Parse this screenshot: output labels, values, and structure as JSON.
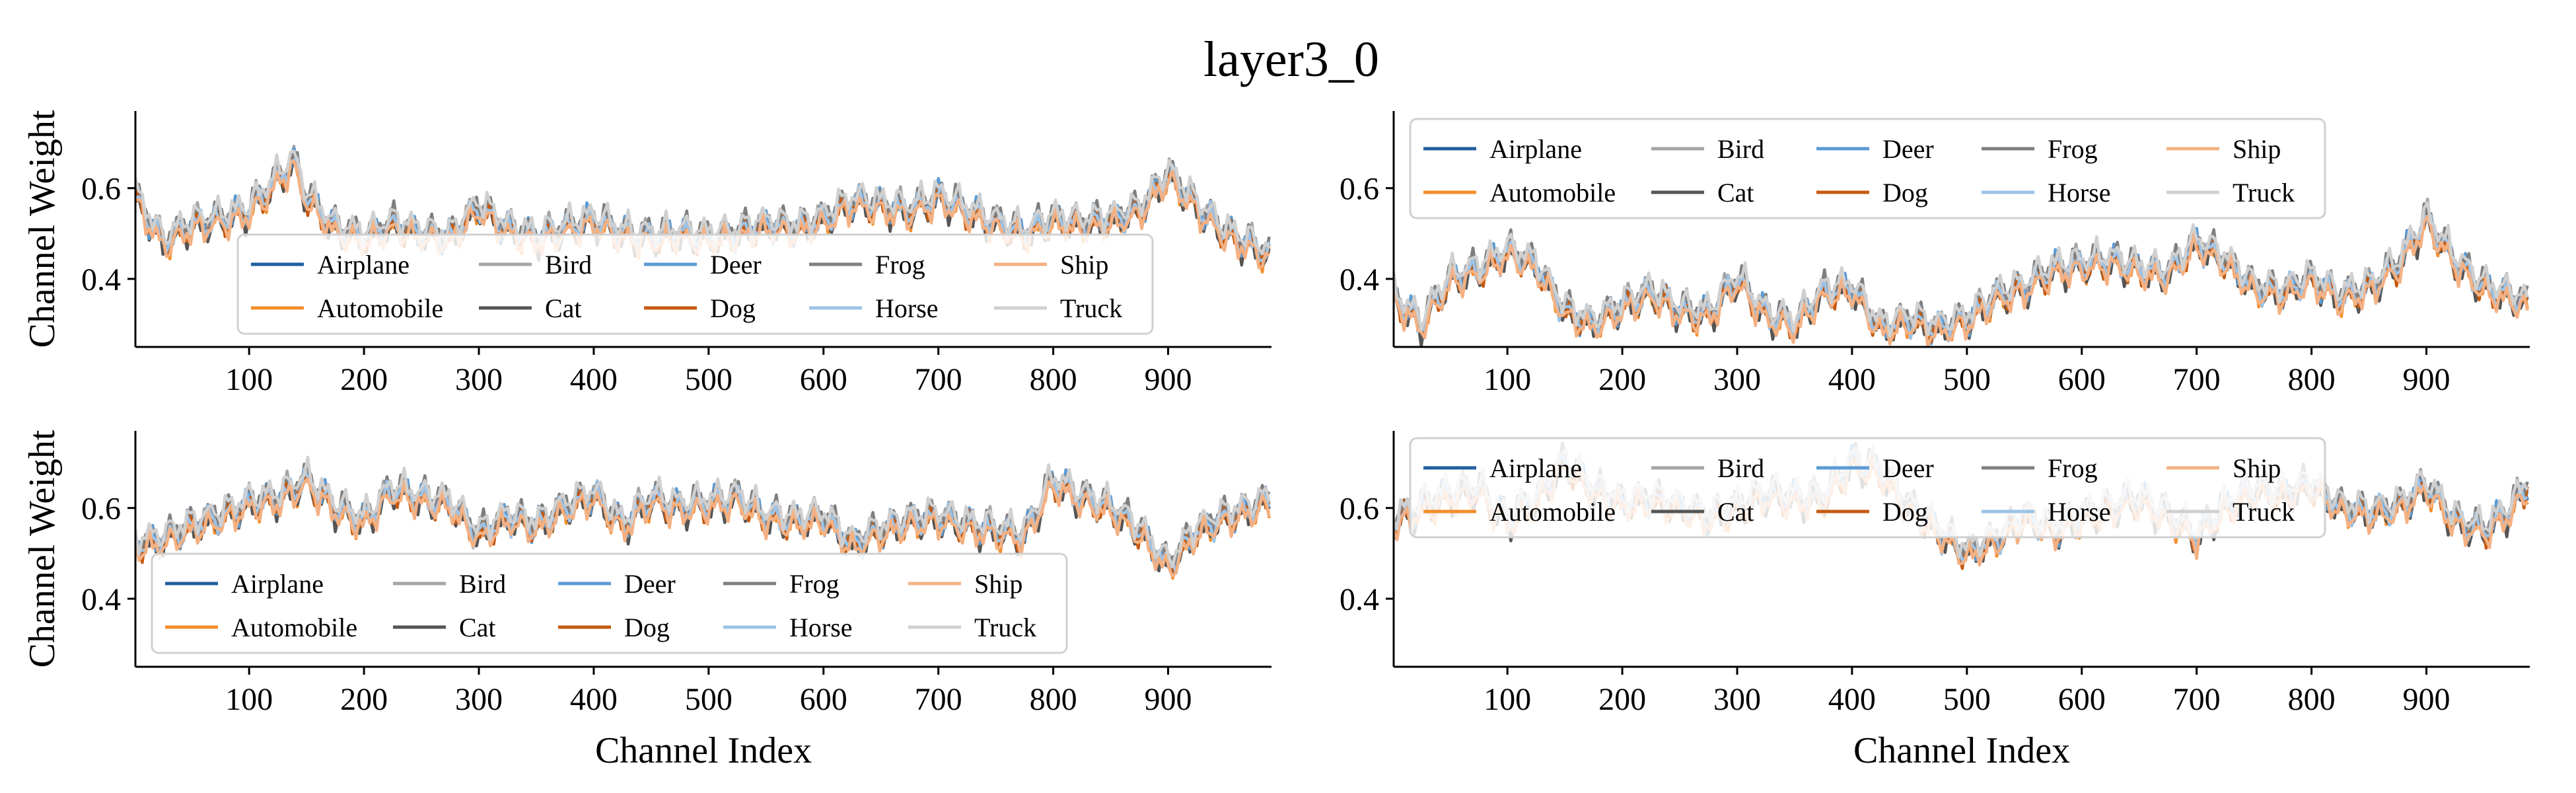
{
  "title": "layer3_0",
  "colors": {
    "Airplane": "#1f5f9e",
    "Automobile": "#f28e2b",
    "Bird": "#a5a5a5",
    "Cat": "#555555",
    "Deer": "#5b9bd5",
    "Dog": "#c55a11",
    "Frog": "#7f7f7f",
    "Horse": "#9dc3e6",
    "Ship": "#f4b183",
    "Truck": "#d0d0d0"
  },
  "chart_data": [
    {
      "type": "line",
      "xlabel": "",
      "ylabel": "Channel Weight",
      "xlim": [
        1,
        990
      ],
      "ylim": [
        0.25,
        0.77
      ],
      "xticks": [
        100,
        200,
        300,
        400,
        500,
        600,
        700,
        800,
        900
      ],
      "yticks": [
        0.4,
        0.6
      ],
      "legend": {
        "placement": "lower-center",
        "entries": [
          "Airplane",
          "Automobile",
          "Bird",
          "Cat",
          "Deer",
          "Dog",
          "Frog",
          "Horse",
          "Ship",
          "Truck"
        ]
      },
      "grid": false,
      "series_names": [
        "Airplane",
        "Automobile",
        "Bird",
        "Cat",
        "Deer",
        "Dog",
        "Frog",
        "Horse",
        "Ship",
        "Truck"
      ],
      "x": [
        1,
        25,
        50,
        75,
        100,
        125,
        138,
        150,
        175,
        200,
        225,
        250,
        275,
        300,
        325,
        350,
        375,
        400,
        425,
        450,
        475,
        500,
        525,
        550,
        575,
        600,
        625,
        650,
        675,
        700,
        725,
        750,
        775,
        800,
        825,
        850,
        875,
        900,
        925,
        950,
        975,
        990
      ],
      "base": [
        0.58,
        0.48,
        0.52,
        0.53,
        0.55,
        0.62,
        0.66,
        0.58,
        0.51,
        0.49,
        0.52,
        0.5,
        0.49,
        0.56,
        0.51,
        0.49,
        0.51,
        0.53,
        0.5,
        0.49,
        0.5,
        0.49,
        0.5,
        0.52,
        0.51,
        0.53,
        0.57,
        0.56,
        0.55,
        0.58,
        0.55,
        0.52,
        0.5,
        0.53,
        0.52,
        0.53,
        0.55,
        0.63,
        0.56,
        0.5,
        0.47,
        0.45
      ]
    },
    {
      "type": "line",
      "xlabel": "",
      "ylabel": "",
      "xlim": [
        1,
        990
      ],
      "ylim": [
        0.25,
        0.77
      ],
      "xticks": [
        100,
        200,
        300,
        400,
        500,
        600,
        700,
        800,
        900
      ],
      "yticks": [
        0.4,
        0.6
      ],
      "legend": {
        "placement": "upper-left",
        "entries": [
          "Airplane",
          "Automobile",
          "Bird",
          "Cat",
          "Deer",
          "Dog",
          "Frog",
          "Horse",
          "Ship",
          "Truck"
        ]
      },
      "grid": false,
      "series_names": [
        "Airplane",
        "Automobile",
        "Bird",
        "Cat",
        "Deer",
        "Dog",
        "Frog",
        "Horse",
        "Ship",
        "Truck"
      ],
      "x": [
        1,
        25,
        50,
        75,
        100,
        125,
        150,
        175,
        200,
        225,
        250,
        275,
        300,
        325,
        350,
        375,
        400,
        425,
        450,
        475,
        500,
        525,
        550,
        575,
        600,
        625,
        650,
        675,
        700,
        725,
        750,
        775,
        800,
        825,
        850,
        875,
        900,
        925,
        950,
        975,
        990
      ],
      "base": [
        0.36,
        0.3,
        0.4,
        0.42,
        0.46,
        0.43,
        0.33,
        0.3,
        0.34,
        0.37,
        0.33,
        0.32,
        0.4,
        0.32,
        0.3,
        0.37,
        0.38,
        0.29,
        0.31,
        0.29,
        0.31,
        0.36,
        0.38,
        0.42,
        0.43,
        0.44,
        0.42,
        0.41,
        0.48,
        0.44,
        0.38,
        0.37,
        0.4,
        0.36,
        0.38,
        0.43,
        0.53,
        0.44,
        0.38,
        0.36,
        0.34
      ]
    },
    {
      "type": "line",
      "xlabel": "Channel Index",
      "ylabel": "Channel Weight",
      "xlim": [
        1,
        990
      ],
      "ylim": [
        0.25,
        0.77
      ],
      "xticks": [
        100,
        200,
        300,
        400,
        500,
        600,
        700,
        800,
        900
      ],
      "yticks": [
        0.4,
        0.6
      ],
      "legend": {
        "placement": "lower-left",
        "entries": [
          "Airplane",
          "Automobile",
          "Bird",
          "Cat",
          "Deer",
          "Dog",
          "Frog",
          "Horse",
          "Ship",
          "Truck"
        ]
      },
      "grid": false,
      "series_names": [
        "Airplane",
        "Automobile",
        "Bird",
        "Cat",
        "Deer",
        "Dog",
        "Frog",
        "Horse",
        "Ship",
        "Truck"
      ],
      "x": [
        1,
        25,
        50,
        75,
        100,
        125,
        150,
        175,
        200,
        225,
        250,
        275,
        300,
        325,
        350,
        375,
        400,
        425,
        450,
        475,
        500,
        525,
        550,
        575,
        600,
        625,
        650,
        675,
        700,
        725,
        750,
        775,
        800,
        825,
        850,
        875,
        900,
        925,
        950,
        975,
        990
      ],
      "base": [
        0.52,
        0.53,
        0.56,
        0.58,
        0.61,
        0.62,
        0.66,
        0.6,
        0.57,
        0.64,
        0.62,
        0.61,
        0.54,
        0.58,
        0.56,
        0.6,
        0.63,
        0.56,
        0.62,
        0.6,
        0.61,
        0.62,
        0.58,
        0.57,
        0.58,
        0.52,
        0.55,
        0.57,
        0.58,
        0.56,
        0.55,
        0.54,
        0.66,
        0.62,
        0.6,
        0.55,
        0.47,
        0.55,
        0.58,
        0.6,
        0.62
      ]
    },
    {
      "type": "line",
      "xlabel": "Channel Index",
      "ylabel": "",
      "xlim": [
        1,
        990
      ],
      "ylim": [
        0.25,
        0.77
      ],
      "xticks": [
        100,
        200,
        300,
        400,
        500,
        600,
        700,
        800,
        900
      ],
      "yticks": [
        0.4,
        0.6
      ],
      "legend": {
        "placement": "upper-left",
        "entries": [
          "Airplane",
          "Automobile",
          "Bird",
          "Cat",
          "Deer",
          "Dog",
          "Frog",
          "Horse",
          "Ship",
          "Truck"
        ]
      },
      "grid": false,
      "series_names": [
        "Airplane",
        "Automobile",
        "Bird",
        "Cat",
        "Deer",
        "Dog",
        "Frog",
        "Horse",
        "Ship",
        "Truck"
      ],
      "x": [
        1,
        25,
        50,
        75,
        100,
        125,
        150,
        175,
        200,
        225,
        250,
        275,
        300,
        325,
        350,
        375,
        400,
        425,
        450,
        475,
        500,
        525,
        550,
        575,
        600,
        625,
        650,
        675,
        700,
        725,
        750,
        775,
        800,
        825,
        850,
        875,
        900,
        925,
        950,
        975,
        990
      ],
      "base": [
        0.57,
        0.6,
        0.63,
        0.64,
        0.57,
        0.62,
        0.7,
        0.64,
        0.61,
        0.62,
        0.6,
        0.58,
        0.6,
        0.63,
        0.62,
        0.62,
        0.7,
        0.68,
        0.6,
        0.55,
        0.5,
        0.53,
        0.58,
        0.55,
        0.58,
        0.6,
        0.62,
        0.58,
        0.54,
        0.6,
        0.64,
        0.63,
        0.65,
        0.6,
        0.59,
        0.6,
        0.65,
        0.57,
        0.55,
        0.6,
        0.66
      ]
    }
  ]
}
